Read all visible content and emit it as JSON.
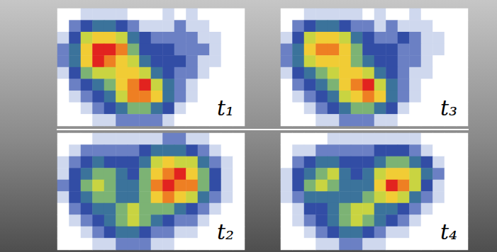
{
  "chart_data": [
    {
      "type": "heatmap",
      "title": "t₁",
      "tick_labels": false,
      "zlim": [
        0,
        9
      ],
      "z": [
        [
          0,
          0,
          1,
          1,
          1,
          1,
          0,
          0,
          0,
          1,
          0,
          1,
          0,
          0,
          0,
          0
        ],
        [
          0,
          2,
          3,
          4,
          4,
          3,
          2,
          1,
          1,
          1,
          2,
          1,
          1,
          0,
          0,
          0
        ],
        [
          1,
          3,
          6,
          7,
          7,
          6,
          4,
          3,
          2,
          2,
          2,
          2,
          1,
          1,
          0,
          0
        ],
        [
          2,
          4,
          7,
          9,
          9,
          8,
          5,
          3,
          3,
          3,
          2,
          2,
          2,
          1,
          0,
          0
        ],
        [
          2,
          4,
          7,
          9,
          8,
          7,
          6,
          4,
          3,
          3,
          3,
          2,
          1,
          1,
          0,
          0
        ],
        [
          1,
          3,
          5,
          6,
          6,
          7,
          7,
          6,
          4,
          3,
          2,
          2,
          1,
          0,
          0,
          0
        ],
        [
          0,
          2,
          3,
          4,
          5,
          7,
          8,
          9,
          6,
          4,
          2,
          1,
          0,
          0,
          0,
          0
        ],
        [
          0,
          1,
          2,
          3,
          4,
          6,
          8,
          8,
          7,
          4,
          2,
          1,
          0,
          0,
          0,
          0
        ],
        [
          0,
          0,
          1,
          2,
          3,
          4,
          5,
          5,
          4,
          3,
          1,
          0,
          0,
          0,
          0,
          0
        ],
        [
          0,
          0,
          0,
          1,
          1,
          2,
          2,
          2,
          2,
          1,
          0,
          0,
          0,
          0,
          0,
          0
        ]
      ]
    },
    {
      "type": "heatmap",
      "title": "t₃",
      "tick_labels": false,
      "zlim": [
        0,
        9
      ],
      "z": [
        [
          0,
          0,
          1,
          1,
          1,
          1,
          1,
          0,
          1,
          0,
          0,
          1,
          0,
          0,
          0,
          0
        ],
        [
          0,
          2,
          3,
          4,
          4,
          3,
          2,
          2,
          1,
          2,
          1,
          1,
          1,
          0,
          0,
          0
        ],
        [
          1,
          3,
          6,
          7,
          7,
          6,
          4,
          3,
          2,
          2,
          3,
          2,
          1,
          1,
          0,
          0
        ],
        [
          2,
          4,
          7,
          8,
          8,
          7,
          5,
          3,
          3,
          3,
          2,
          2,
          1,
          1,
          0,
          0
        ],
        [
          2,
          4,
          6,
          7,
          7,
          7,
          5,
          4,
          3,
          3,
          2,
          2,
          1,
          0,
          0,
          0
        ],
        [
          1,
          3,
          4,
          5,
          6,
          7,
          7,
          6,
          4,
          3,
          2,
          1,
          1,
          0,
          0,
          0
        ],
        [
          0,
          2,
          3,
          4,
          5,
          7,
          8,
          9,
          6,
          4,
          2,
          1,
          0,
          0,
          0,
          0
        ],
        [
          0,
          1,
          2,
          3,
          4,
          6,
          7,
          8,
          7,
          4,
          2,
          1,
          0,
          0,
          0,
          0
        ],
        [
          0,
          0,
          1,
          2,
          3,
          4,
          5,
          5,
          4,
          3,
          1,
          0,
          0,
          0,
          0,
          0
        ],
        [
          0,
          0,
          0,
          1,
          1,
          2,
          2,
          2,
          1,
          1,
          0,
          0,
          0,
          0,
          0,
          0
        ]
      ]
    },
    {
      "type": "heatmap",
      "title": "t₂",
      "tick_labels": false,
      "zlim": [
        0,
        9
      ],
      "z": [
        [
          0,
          0,
          0,
          1,
          1,
          1,
          1,
          1,
          1,
          2,
          2,
          1,
          1,
          0,
          0,
          0
        ],
        [
          0,
          1,
          2,
          2,
          2,
          2,
          2,
          3,
          4,
          4,
          4,
          3,
          2,
          1,
          0,
          0
        ],
        [
          1,
          2,
          3,
          4,
          3,
          3,
          3,
          4,
          6,
          7,
          6,
          6,
          4,
          2,
          1,
          0
        ],
        [
          1,
          3,
          4,
          5,
          5,
          4,
          3,
          5,
          7,
          8,
          9,
          7,
          5,
          3,
          1,
          0
        ],
        [
          2,
          3,
          5,
          6,
          5,
          4,
          4,
          5,
          8,
          9,
          8,
          8,
          5,
          3,
          1,
          0
        ],
        [
          1,
          3,
          4,
          5,
          5,
          4,
          4,
          5,
          7,
          8,
          7,
          6,
          4,
          2,
          1,
          0
        ],
        [
          0,
          2,
          3,
          4,
          4,
          5,
          6,
          5,
          5,
          5,
          4,
          3,
          2,
          1,
          0,
          0
        ],
        [
          0,
          1,
          2,
          3,
          4,
          5,
          6,
          5,
          4,
          3,
          2,
          2,
          1,
          0,
          0,
          0
        ],
        [
          0,
          0,
          1,
          2,
          3,
          4,
          4,
          3,
          2,
          2,
          1,
          1,
          0,
          0,
          0,
          0
        ],
        [
          0,
          0,
          0,
          1,
          1,
          2,
          2,
          2,
          1,
          1,
          0,
          0,
          0,
          0,
          0,
          0
        ]
      ]
    },
    {
      "type": "heatmap",
      "title": "t₄",
      "tick_labels": false,
      "zlim": [
        0,
        9
      ],
      "z": [
        [
          0,
          0,
          0,
          0,
          1,
          1,
          1,
          1,
          1,
          1,
          1,
          1,
          0,
          0,
          0,
          0
        ],
        [
          0,
          1,
          1,
          2,
          2,
          2,
          2,
          2,
          3,
          3,
          3,
          2,
          1,
          0,
          0,
          0
        ],
        [
          0,
          2,
          3,
          4,
          4,
          3,
          3,
          3,
          4,
          5,
          5,
          4,
          3,
          1,
          0,
          0
        ],
        [
          1,
          3,
          4,
          5,
          6,
          4,
          3,
          4,
          6,
          7,
          7,
          6,
          4,
          2,
          0,
          0
        ],
        [
          1,
          3,
          5,
          6,
          5,
          4,
          4,
          4,
          7,
          9,
          8,
          6,
          3,
          1,
          0,
          0
        ],
        [
          1,
          2,
          4,
          4,
          4,
          4,
          4,
          5,
          6,
          7,
          6,
          4,
          2,
          1,
          0,
          0
        ],
        [
          0,
          1,
          3,
          3,
          4,
          5,
          6,
          6,
          4,
          4,
          3,
          2,
          1,
          0,
          0,
          0
        ],
        [
          0,
          1,
          2,
          3,
          4,
          5,
          6,
          5,
          4,
          3,
          2,
          1,
          0,
          0,
          0,
          0
        ],
        [
          0,
          0,
          1,
          2,
          3,
          4,
          4,
          3,
          2,
          1,
          1,
          0,
          0,
          0,
          0,
          0
        ],
        [
          0,
          0,
          0,
          1,
          1,
          2,
          2,
          1,
          1,
          0,
          0,
          0,
          0,
          0,
          0,
          0
        ]
      ]
    }
  ]
}
